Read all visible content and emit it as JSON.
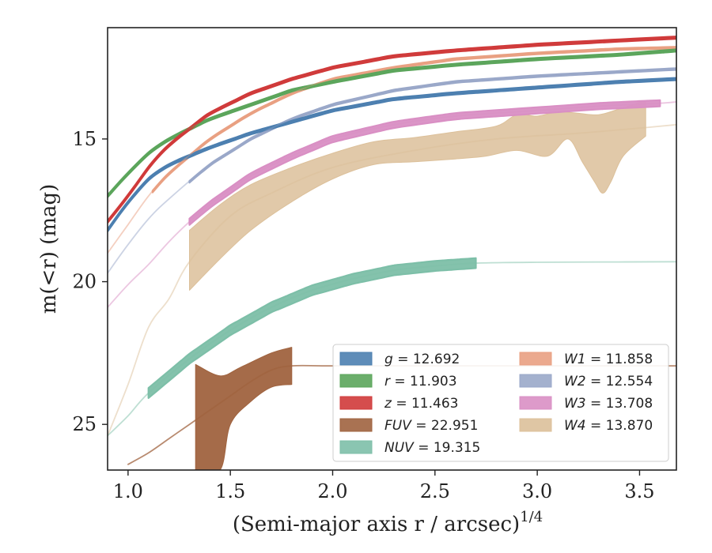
{
  "chart_data": {
    "type": "area",
    "title": "",
    "xlabel": "(Semi-major axis r / arcsec)",
    "xlabel_exponent": "1/4",
    "ylabel": "m(<r) (mag)",
    "xlim": [
      0.9,
      3.68
    ],
    "ylim": [
      26.6,
      11.1
    ],
    "y_inverted": true,
    "x_ticks": [
      "1.0",
      "1.5",
      "2.0",
      "2.5",
      "3.0",
      "3.5"
    ],
    "y_ticks": [
      "15",
      "20",
      "25"
    ],
    "grid": false,
    "legend_position": "lower-right",
    "legend": [
      {
        "name": "g",
        "value": "= 12.692"
      },
      {
        "name": "r",
        "value": "= 11.903"
      },
      {
        "name": "z",
        "value": "= 11.463"
      },
      {
        "name": "FUV",
        "value": "= 22.951"
      },
      {
        "name": "NUV",
        "value": "= 19.315"
      },
      {
        "name": "W1",
        "value": "= 11.858"
      },
      {
        "name": "W2",
        "value": "= 12.554"
      },
      {
        "name": "W3",
        "value": "= 13.708"
      },
      {
        "name": "W4",
        "value": "= 13.870"
      }
    ],
    "series": [
      {
        "key": "g",
        "color": "#4c7fb0",
        "band_start": 0.9,
        "band_end": 3.68,
        "band_width": 0.08,
        "x": [
          0.9,
          1.0,
          1.1,
          1.2,
          1.4,
          1.6,
          1.8,
          2.0,
          2.3,
          2.6,
          3.0,
          3.4,
          3.68
        ],
        "y": [
          18.2,
          17.2,
          16.4,
          15.9,
          15.3,
          14.8,
          14.4,
          14.0,
          13.6,
          13.4,
          13.2,
          13.0,
          12.9
        ]
      },
      {
        "key": "r",
        "color": "#5ba55b",
        "band_start": 0.9,
        "band_end": 3.68,
        "band_width": 0.08,
        "x": [
          0.9,
          1.0,
          1.1,
          1.2,
          1.4,
          1.6,
          1.8,
          2.0,
          2.3,
          2.6,
          3.0,
          3.4,
          3.68
        ],
        "y": [
          17.0,
          16.2,
          15.5,
          15.0,
          14.3,
          13.8,
          13.3,
          13.0,
          12.6,
          12.4,
          12.2,
          12.05,
          11.9
        ]
      },
      {
        "key": "z",
        "color": "#d03a3a",
        "band_start": 0.9,
        "band_end": 3.68,
        "band_width": 0.08,
        "x": [
          0.9,
          1.0,
          1.1,
          1.2,
          1.4,
          1.6,
          1.8,
          2.0,
          2.3,
          2.6,
          3.0,
          3.4,
          3.68
        ],
        "y": [
          17.9,
          17.0,
          16.0,
          15.2,
          14.1,
          13.4,
          12.9,
          12.5,
          12.1,
          11.9,
          11.7,
          11.55,
          11.45
        ]
      },
      {
        "key": "W1",
        "color": "#e9a082",
        "band_start": 1.12,
        "band_end": 3.68,
        "band_width": 0.06,
        "x": [
          0.9,
          1.0,
          1.1,
          1.2,
          1.4,
          1.6,
          1.8,
          2.0,
          2.3,
          2.6,
          3.0,
          3.4,
          3.68
        ],
        "y": [
          19.0,
          18.0,
          17.0,
          16.2,
          15.0,
          14.1,
          13.4,
          12.9,
          12.5,
          12.2,
          12.0,
          11.85,
          11.8
        ]
      },
      {
        "key": "W2",
        "color": "#9aa8c9",
        "band_start": 1.3,
        "band_end": 3.68,
        "band_width": 0.06,
        "x": [
          0.9,
          1.0,
          1.1,
          1.2,
          1.4,
          1.6,
          1.8,
          2.0,
          2.3,
          2.6,
          3.0,
          3.4,
          3.68
        ],
        "y": [
          19.7,
          18.7,
          17.8,
          17.1,
          15.9,
          15.0,
          14.3,
          13.8,
          13.3,
          13.0,
          12.8,
          12.65,
          12.55
        ]
      },
      {
        "key": "W3",
        "color": "#d98fc4",
        "band_start": 1.3,
        "band_end": 3.6,
        "band_width": 0.22,
        "x": [
          0.9,
          1.0,
          1.1,
          1.2,
          1.3,
          1.4,
          1.6,
          1.8,
          2.0,
          2.3,
          2.6,
          3.0,
          3.3,
          3.6,
          3.68
        ],
        "y": [
          20.9,
          20.1,
          19.4,
          18.6,
          17.9,
          17.3,
          16.3,
          15.6,
          15.0,
          14.5,
          14.2,
          14.0,
          13.85,
          13.75,
          13.7
        ]
      },
      {
        "key": "NUV",
        "color": "#7dbfa8",
        "band_start": 1.1,
        "band_end": 2.7,
        "band_width": 0.35,
        "x": [
          0.9,
          1.0,
          1.1,
          1.3,
          1.5,
          1.7,
          1.9,
          2.1,
          2.3,
          2.5,
          2.7,
          3.0,
          3.4,
          3.68
        ],
        "y": [
          25.4,
          24.7,
          23.9,
          22.7,
          21.7,
          20.9,
          20.3,
          19.9,
          19.6,
          19.45,
          19.35,
          19.32,
          19.31,
          19.3
        ]
      },
      {
        "key": "FUV",
        "color": "#a0633f",
        "band_start": 1.33,
        "band_end": 1.8,
        "band_width": 0,
        "x": [
          1.0,
          1.1,
          1.2,
          1.3,
          1.4,
          1.5,
          1.6,
          1.7,
          1.8,
          2.0,
          2.5,
          3.0,
          3.68
        ],
        "y": [
          26.4,
          26.0,
          25.5,
          25.0,
          24.5,
          24.0,
          23.5,
          23.1,
          22.95,
          22.95,
          22.95,
          22.95,
          22.95
        ],
        "band_upper": [
          [
            1.33,
            22.9
          ],
          [
            1.45,
            23.3
          ],
          [
            1.55,
            23.0
          ],
          [
            1.7,
            22.5
          ],
          [
            1.8,
            22.3
          ]
        ],
        "band_lower": [
          [
            1.33,
            26.6
          ],
          [
            1.45,
            26.6
          ],
          [
            1.5,
            25.0
          ],
          [
            1.6,
            24.2
          ],
          [
            1.7,
            23.7
          ],
          [
            1.8,
            23.6
          ]
        ]
      },
      {
        "key": "W4",
        "color": "#dcc09a",
        "band_start": 1.3,
        "band_end": 3.53,
        "band_width": 0,
        "x": [
          0.9,
          1.0,
          1.1,
          1.2,
          1.3,
          1.5,
          1.7,
          2.0,
          2.4,
          2.8,
          3.2,
          3.53,
          3.68
        ],
        "y": [
          25.4,
          23.6,
          21.6,
          20.6,
          19.3,
          17.7,
          16.9,
          16.0,
          15.4,
          15.0,
          14.8,
          14.6,
          14.5
        ],
        "band_upper": [
          [
            1.3,
            18.2
          ],
          [
            1.45,
            17.3
          ],
          [
            1.6,
            16.6
          ],
          [
            1.8,
            16.0
          ],
          [
            2.0,
            15.5
          ],
          [
            2.2,
            15.1
          ],
          [
            2.4,
            14.95
          ],
          [
            2.6,
            14.75
          ],
          [
            2.8,
            14.55
          ],
          [
            2.9,
            14.15
          ],
          [
            3.0,
            14.2
          ],
          [
            3.1,
            14.05
          ],
          [
            3.2,
            14.1
          ],
          [
            3.3,
            14.15
          ],
          [
            3.4,
            13.95
          ],
          [
            3.53,
            13.65
          ]
        ],
        "band_lower": [
          [
            1.3,
            20.3
          ],
          [
            1.45,
            19.2
          ],
          [
            1.6,
            18.2
          ],
          [
            1.8,
            17.2
          ],
          [
            2.0,
            16.4
          ],
          [
            2.2,
            15.9
          ],
          [
            2.4,
            15.8
          ],
          [
            2.6,
            15.7
          ],
          [
            2.75,
            15.6
          ],
          [
            2.9,
            15.4
          ],
          [
            3.05,
            15.6
          ],
          [
            3.15,
            15.0
          ],
          [
            3.22,
            15.8
          ],
          [
            3.28,
            16.5
          ],
          [
            3.32,
            16.9
          ],
          [
            3.36,
            16.5
          ],
          [
            3.42,
            15.6
          ],
          [
            3.53,
            14.9
          ]
        ]
      }
    ]
  }
}
